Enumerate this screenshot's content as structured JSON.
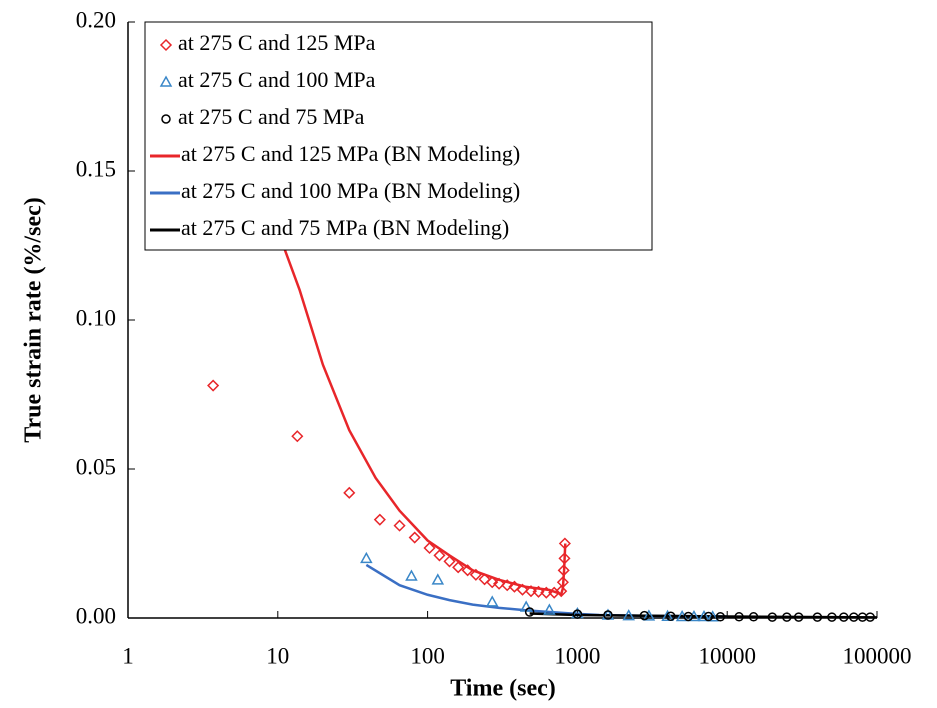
{
  "chart_data": {
    "type": "scatter",
    "x_label": "Time (sec)",
    "y_label": "True strain rate (%/sec)",
    "xscale": "log",
    "xlim": [
      1,
      100000
    ],
    "xticks": [
      1,
      10,
      100,
      1000,
      10000,
      100000
    ],
    "ylim": [
      0,
      0.2
    ],
    "yticks": [
      {
        "value": 0,
        "label": "0.00"
      },
      {
        "value": 0.05,
        "label": "0.05"
      },
      {
        "value": 0.1,
        "label": "0.10"
      },
      {
        "value": 0.15,
        "label": "0.15"
      },
      {
        "value": 0.2,
        "label": "0.20"
      }
    ],
    "series": [
      {
        "name": "at 275 C and 125 MPa",
        "color": "#e8262a",
        "marker": "diamond",
        "x": [
          3.7,
          13.5,
          30,
          48,
          65,
          82,
          103,
          120,
          140,
          160,
          185,
          210,
          240,
          270,
          300,
          340,
          380,
          430,
          490,
          550,
          620,
          700,
          780,
          800,
          810,
          820,
          825
        ],
        "values": [
          0.078,
          0.061,
          0.042,
          0.033,
          0.031,
          0.027,
          0.0235,
          0.021,
          0.019,
          0.017,
          0.016,
          0.0145,
          0.013,
          0.012,
          0.0115,
          0.011,
          0.0105,
          0.0095,
          0.009,
          0.0088,
          0.0085,
          0.0085,
          0.009,
          0.012,
          0.016,
          0.02,
          0.025
        ]
      },
      {
        "name": "at 275 C and 100 MPa",
        "color": "#3a87c8",
        "marker": "triangle",
        "x": [
          39,
          78,
          117,
          270,
          455,
          650,
          1000,
          1600,
          2200,
          3000,
          4000,
          5000,
          6000,
          7000,
          8000
        ],
        "values": [
          0.02,
          0.0141,
          0.0128,
          0.0054,
          0.0037,
          0.0027,
          0.0015,
          0.001,
          0.0008,
          0.0007,
          0.0006,
          0.0005,
          0.0005,
          0.0005,
          0.0004
        ]
      },
      {
        "name": "at 275 C and 75 MPa",
        "color": "#000000",
        "marker": "circle",
        "x": [
          480,
          1000,
          1600,
          2800,
          4200,
          5500,
          7500,
          9000,
          12000,
          15000,
          20000,
          25000,
          30000,
          40000,
          50000,
          60000,
          70000,
          80000,
          90000
        ],
        "values": [
          0.002,
          0.0013,
          0.001,
          0.0008,
          0.0006,
          0.0005,
          0.0005,
          0.0004,
          0.0004,
          0.0004,
          0.0003,
          0.0003,
          0.0003,
          0.0003,
          0.0003,
          0.0003,
          0.0003,
          0.0003,
          0.0003
        ]
      },
      {
        "name": "at 275 C and 125 MPa (BN Modeling)",
        "color": "#e8262a",
        "marker": "line",
        "x": [
          4.9,
          6.5,
          10,
          14,
          20,
          30,
          45,
          65,
          100,
          140,
          200,
          300,
          450,
          650,
          780,
          800,
          815,
          830
        ],
        "values": [
          0.2,
          0.164,
          0.13,
          0.11,
          0.085,
          0.063,
          0.047,
          0.036,
          0.026,
          0.021,
          0.016,
          0.0128,
          0.0105,
          0.0094,
          0.008,
          0.01,
          0.016,
          0.025
        ]
      },
      {
        "name": "at 275 C and 100 MPa (BN Modeling)",
        "color": "#3a6fc4",
        "marker": "line",
        "x": [
          39,
          65,
          100,
          140,
          200,
          300,
          450,
          650,
          1000,
          1400,
          3000,
          10000
        ],
        "values": [
          0.0178,
          0.011,
          0.0078,
          0.006,
          0.0045,
          0.0034,
          0.0026,
          0.002,
          0.0014,
          0.001,
          0.0007,
          0.0005
        ]
      },
      {
        "name": "at 275 C and 75 MPa (BN Modeling)",
        "color": "#000000",
        "marker": "line",
        "x": [
          480,
          1000,
          10000,
          100000
        ],
        "values": [
          0.0015,
          0.001,
          0.0005,
          0.0002
        ]
      }
    ],
    "legend": "upper-left"
  }
}
